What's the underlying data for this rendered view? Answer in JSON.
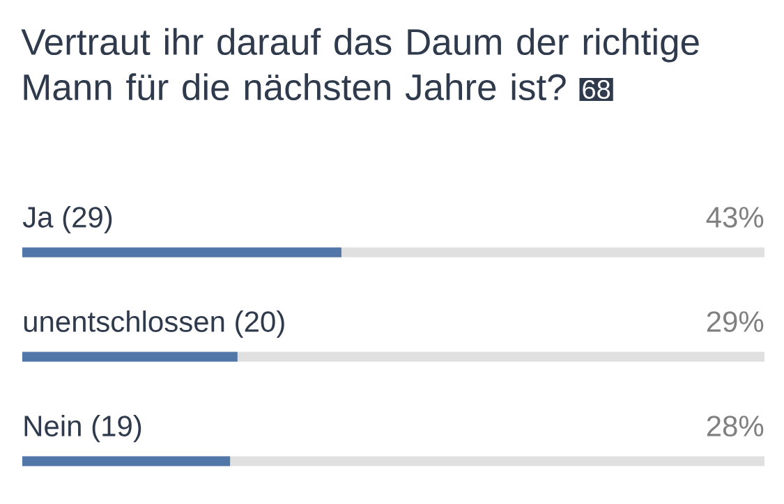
{
  "chart_data": {
    "type": "bar",
    "orientation": "horizontal",
    "title": "Vertraut ihr darauf das Daum der richtige Mann für die nächsten Jahre ist?",
    "annotations": [
      "68"
    ],
    "categories": [
      "Ja (29)",
      "unentschlossen (20)",
      "Nein (19)"
    ],
    "values": [
      43,
      29,
      28
    ],
    "value_labels": [
      "43%",
      "29%",
      "28%"
    ],
    "color": "#5077a8",
    "xlim": [
      0,
      100
    ]
  }
}
